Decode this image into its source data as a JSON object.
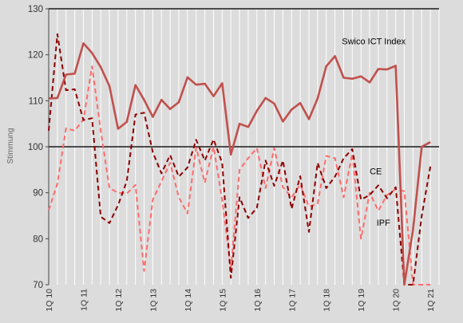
{
  "chart_data": {
    "type": "line",
    "title": "",
    "xlabel": "",
    "ylabel": "Stimmung",
    "ylim": [
      70,
      130
    ],
    "yticks": [
      70,
      80,
      90,
      100,
      110,
      120,
      130
    ],
    "x_tick_labels": [
      "1Q 10",
      "1Q 11",
      "1Q 12",
      "1Q 13",
      "1Q 14",
      "1Q 15",
      "1Q 16",
      "1Q 17",
      "1Q 18",
      "1Q 19",
      "1Q 20",
      "1Q 21"
    ],
    "x_start": 2010.0,
    "x_end": 2021.25,
    "months_per_point": 3,
    "grid": "vertical",
    "reference_lines": [
      100,
      130
    ],
    "colors": {
      "Swico ICT Index": "#c0504d",
      "CE": "#8b0000",
      "IPF": "#ff6b6b",
      "background": "#dcdcdc",
      "grid": "#ffffff",
      "reference": "#1a1a1a"
    },
    "series": [
      {
        "name": "Swico ICT Index",
        "style": "solid",
        "label_position": "right",
        "values": [
          110.5,
          110.6,
          115.7,
          115.9,
          122.5,
          120.4,
          117.3,
          113.2,
          103.9,
          105.4,
          113.4,
          110.2,
          106.5,
          110.2,
          108.2,
          109.7,
          115.1,
          113.5,
          113.7,
          111.0,
          113.8,
          98.3,
          105.0,
          104.3,
          107.8,
          110.6,
          109.4,
          105.5,
          108.1,
          109.5,
          106.0,
          110.5,
          117.5,
          119.7,
          115.0,
          114.8,
          115.3,
          114.0,
          116.9,
          116.8,
          117.6,
          66.5,
          82.0,
          100.0,
          101.0
        ]
      },
      {
        "name": "CE",
        "style": "dashed",
        "values": [
          103.5,
          124.5,
          112.3,
          112.5,
          105.8,
          106.2,
          84.8,
          83.4,
          87.3,
          92.5,
          107.0,
          107.4,
          98.8,
          94.2,
          98.2,
          93.5,
          95.5,
          101.5,
          97.0,
          101.6,
          96.5,
          71.5,
          89.0,
          84.5,
          86.7,
          97.0,
          91.5,
          97.0,
          86.5,
          93.6,
          81.5,
          96.5,
          91.0,
          93.5,
          97.5,
          99.5,
          88.5,
          89.5,
          91.6,
          88.8,
          91.2,
          66.0,
          70.0,
          85.0,
          95.7
        ]
      },
      {
        "name": "IPF",
        "style": "dashed",
        "values": [
          86.2,
          92.0,
          104.0,
          103.5,
          105.9,
          117.5,
          103.5,
          91.0,
          90.0,
          89.8,
          91.7,
          73.0,
          88.5,
          92.5,
          96.5,
          89.0,
          85.5,
          99.8,
          92.2,
          100.0,
          88.5,
          73.5,
          95.0,
          97.5,
          99.7,
          91.0,
          99.7,
          91.2,
          89.0,
          91.8,
          87.0,
          87.6,
          98.0,
          97.5,
          89.0,
          98.5,
          80.0,
          90.0,
          86.1,
          89.5,
          90.8,
          90.3,
          66.0,
          70.0,
          70.0
        ]
      }
    ],
    "series_labels": [
      {
        "name": "Swico ICT Index",
        "x": 2018.45,
        "y": 122.3
      },
      {
        "name": "CE",
        "x": 2019.25,
        "y": 94.0
      },
      {
        "name": "IPF",
        "x": 2019.45,
        "y": 82.8
      }
    ]
  }
}
